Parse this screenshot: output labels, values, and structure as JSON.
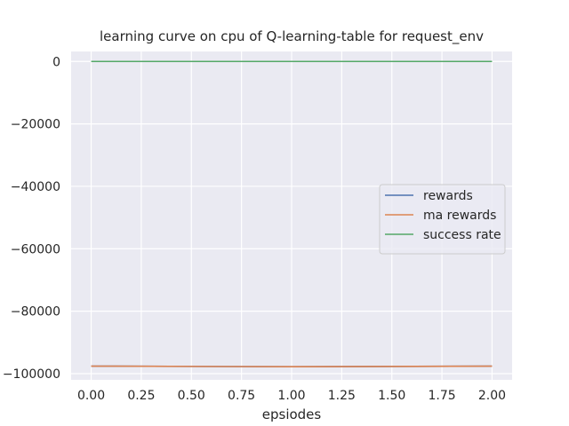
{
  "chart_data": {
    "type": "line",
    "title": "learning curve on cpu of Q-learning-table for request_env",
    "xlabel": "epsiodes",
    "ylabel": "",
    "x": [
      0,
      1,
      2
    ],
    "xlim": [
      -0.1,
      2.1
    ],
    "ylim": [
      -102000,
      3200
    ],
    "xticks": [
      0.0,
      0.25,
      0.5,
      0.75,
      1.0,
      1.25,
      1.5,
      1.75,
      2.0
    ],
    "xtick_labels": [
      "0.00",
      "0.25",
      "0.50",
      "0.75",
      "1.00",
      "1.25",
      "1.50",
      "1.75",
      "2.00"
    ],
    "yticks": [
      0,
      -20000,
      -40000,
      -60000,
      -80000,
      -100000
    ],
    "ytick_labels": [
      "0",
      "−20000",
      "−40000",
      "−60000",
      "−80000",
      "−100000"
    ],
    "grid": true,
    "legend_position": "center-right",
    "background_color": "#eaeaf2",
    "grid_color": "#ffffff",
    "series": [
      {
        "name": "rewards",
        "color": "#4c72b0",
        "values": [
          -97600,
          -97800,
          -97600
        ]
      },
      {
        "name": "ma rewards",
        "color": "#dd8452",
        "values": [
          -97600,
          -97800,
          -97600
        ]
      },
      {
        "name": "success rate",
        "color": "#55a868",
        "values": [
          0,
          0,
          0
        ]
      }
    ]
  }
}
